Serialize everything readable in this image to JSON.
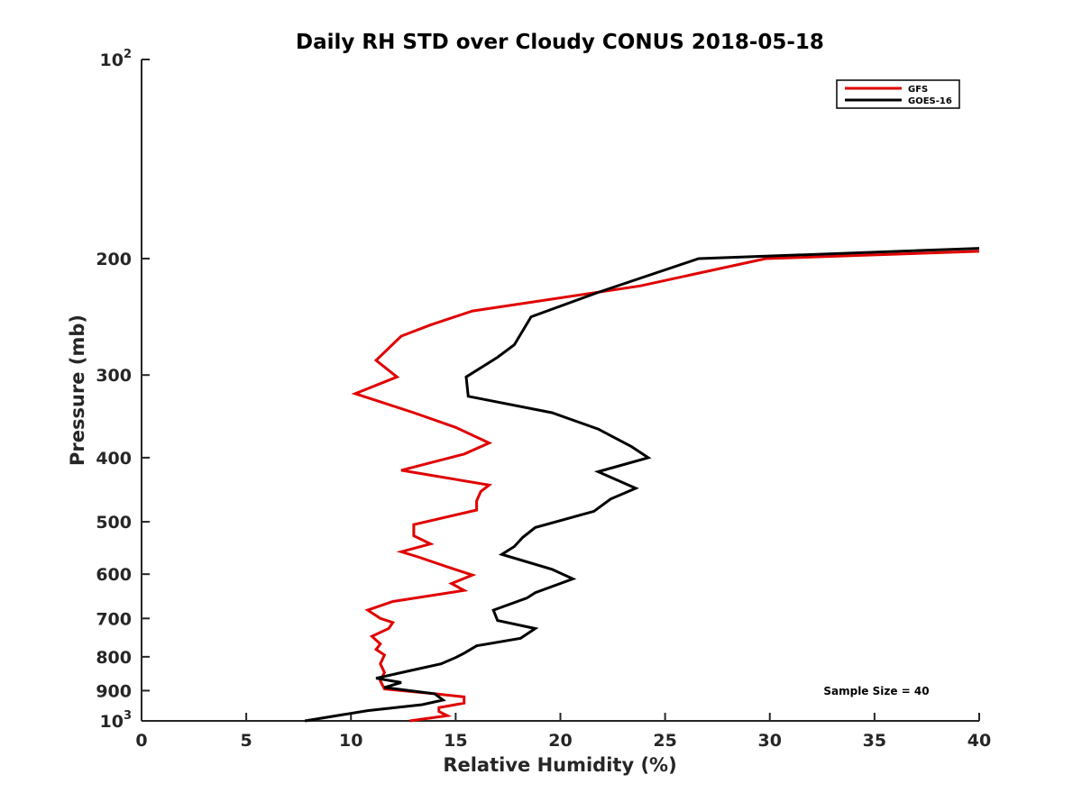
{
  "chart_data": {
    "type": "line",
    "title": "Daily RH STD over Cloudy CONUS 2018-05-18",
    "xlabel": "Relative Humidity (%)",
    "ylabel": "Pressure (mb)",
    "xlim": [
      0,
      40
    ],
    "ylim": [
      100,
      1000
    ],
    "y_scale": "log",
    "y_reversed": true,
    "x_ticks": [
      "0",
      "5",
      "10",
      "15",
      "20",
      "25",
      "30",
      "35",
      "40"
    ],
    "y_ticks": [
      {
        "value": 100,
        "label": "10",
        "sup": "2"
      },
      {
        "value": 200,
        "label": "200",
        "sup": ""
      },
      {
        "value": 300,
        "label": "300",
        "sup": ""
      },
      {
        "value": 400,
        "label": "400",
        "sup": ""
      },
      {
        "value": 500,
        "label": "500",
        "sup": ""
      },
      {
        "value": 600,
        "label": "600",
        "sup": ""
      },
      {
        "value": 700,
        "label": "700",
        "sup": ""
      },
      {
        "value": 800,
        "label": "800",
        "sup": ""
      },
      {
        "value": 900,
        "label": "900",
        "sup": ""
      },
      {
        "value": 1000,
        "label": "10",
        "sup": "3"
      }
    ],
    "grid": false,
    "legend_position": "top-right",
    "annotation": "Sample Size = 40",
    "series": [
      {
        "name": "GFS",
        "color": "#e00000",
        "points": [
          [
            12.8,
            1000
          ],
          [
            14.6,
            982
          ],
          [
            14.2,
            968
          ],
          [
            14.2,
            955
          ],
          [
            15.4,
            940
          ],
          [
            15.4,
            920
          ],
          [
            14.0,
            910
          ],
          [
            11.6,
            895
          ],
          [
            11.4,
            870
          ],
          [
            11.6,
            845
          ],
          [
            11.4,
            820
          ],
          [
            11.6,
            795
          ],
          [
            11.2,
            780
          ],
          [
            11.4,
            765
          ],
          [
            11.0,
            745
          ],
          [
            11.8,
            725
          ],
          [
            12.0,
            710
          ],
          [
            11.4,
            700
          ],
          [
            10.8,
            680
          ],
          [
            12.0,
            660
          ],
          [
            15.4,
            635
          ],
          [
            14.8,
            620
          ],
          [
            15.8,
            602
          ],
          [
            14.6,
            585
          ],
          [
            13.2,
            565
          ],
          [
            12.4,
            555
          ],
          [
            13.8,
            540
          ],
          [
            13.0,
            525
          ],
          [
            13.0,
            505
          ],
          [
            16.0,
            480
          ],
          [
            16.0,
            465
          ],
          [
            16.2,
            450
          ],
          [
            16.6,
            440
          ],
          [
            12.4,
            418
          ],
          [
            15.4,
            395
          ],
          [
            16.6,
            380
          ],
          [
            15.0,
            360
          ],
          [
            13.0,
            342
          ],
          [
            10.2,
            320
          ],
          [
            12.2,
            302
          ],
          [
            11.2,
            285
          ],
          [
            12.4,
            262
          ],
          [
            13.8,
            252
          ],
          [
            15.8,
            240
          ],
          [
            23.8,
            220
          ],
          [
            29.8,
            200
          ],
          [
            40.0,
            195
          ]
        ]
      },
      {
        "name": "GOES-16",
        "color": "#000000",
        "points": [
          [
            7.8,
            1000
          ],
          [
            10.8,
            965
          ],
          [
            13.4,
            945
          ],
          [
            14.4,
            930
          ],
          [
            14.0,
            910
          ],
          [
            11.6,
            890
          ],
          [
            12.4,
            875
          ],
          [
            11.2,
            862
          ],
          [
            12.8,
            840
          ],
          [
            14.3,
            820
          ],
          [
            15.0,
            802
          ],
          [
            15.4,
            790
          ],
          [
            16.0,
            770
          ],
          [
            18.1,
            750
          ],
          [
            18.8,
            725
          ],
          [
            17.0,
            705
          ],
          [
            16.8,
            680
          ],
          [
            18.4,
            652
          ],
          [
            18.8,
            640
          ],
          [
            20.6,
            610
          ],
          [
            19.6,
            590
          ],
          [
            17.2,
            560
          ],
          [
            17.8,
            545
          ],
          [
            18.2,
            528
          ],
          [
            18.8,
            510
          ],
          [
            21.6,
            482
          ],
          [
            22.4,
            462
          ],
          [
            23.6,
            445
          ],
          [
            21.8,
            420
          ],
          [
            24.2,
            400
          ],
          [
            23.4,
            385
          ],
          [
            21.8,
            362
          ],
          [
            19.6,
            342
          ],
          [
            15.6,
            323
          ],
          [
            15.5,
            302
          ],
          [
            17.0,
            282
          ],
          [
            17.8,
            270
          ],
          [
            18.6,
            245
          ],
          [
            21.8,
            225
          ],
          [
            26.6,
            200
          ],
          [
            40.0,
            193
          ]
        ]
      }
    ]
  }
}
